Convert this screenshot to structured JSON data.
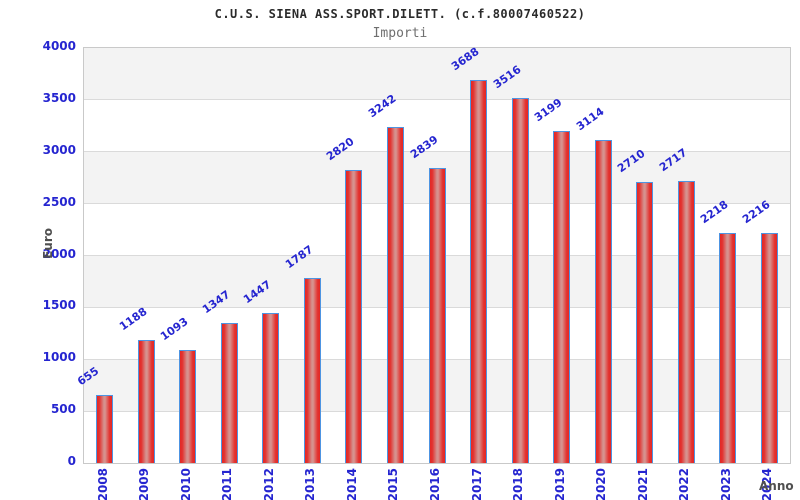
{
  "header": {
    "title": "C.U.S. SIENA ASS.SPORT.DILETT. (c.f.80007460522)",
    "subtitle": "Importi"
  },
  "axes": {
    "y_name": "Euro",
    "x_name": "Anno",
    "y_ticks": [
      "0",
      "500",
      "1000",
      "1500",
      "2000",
      "2500",
      "3000",
      "3500",
      "4000"
    ]
  },
  "colors": {
    "label_blue": "#2525d0",
    "bar_red": "#e42724",
    "bar_highlight": "#d8928f",
    "bar_border": "#4d94e2",
    "band_gray": "#f3f3f3",
    "gridline": "#dadada",
    "plot_border": "#c9c9c9",
    "title_color": "#2b2b2b",
    "subtitle_color": "#6f6f6f",
    "axis_name_color": "#4f4f4f"
  },
  "chart_data": {
    "type": "bar",
    "title": "C.U.S. SIENA ASS.SPORT.DILETT. (c.f.80007460522)",
    "subtitle": "Importi",
    "xlabel": "Anno",
    "ylabel": "Euro",
    "categories": [
      "2008",
      "2009",
      "2010",
      "2011",
      "2012",
      "2013",
      "2014",
      "2015",
      "2016",
      "2017",
      "2018",
      "2019",
      "2020",
      "2021",
      "2022",
      "2023",
      "2024"
    ],
    "values": [
      655,
      1188,
      1093,
      1347,
      1447,
      1787,
      2820,
      3242,
      2839,
      3688,
      3516,
      3199,
      3114,
      2710,
      2717,
      2218,
      2216
    ],
    "ylim": [
      0,
      4000
    ],
    "ytick_step": 500,
    "grid": true,
    "bands": true,
    "legend": "none",
    "bar_labels_rotated_deg": -35,
    "xtick_rotation_deg": -90
  }
}
